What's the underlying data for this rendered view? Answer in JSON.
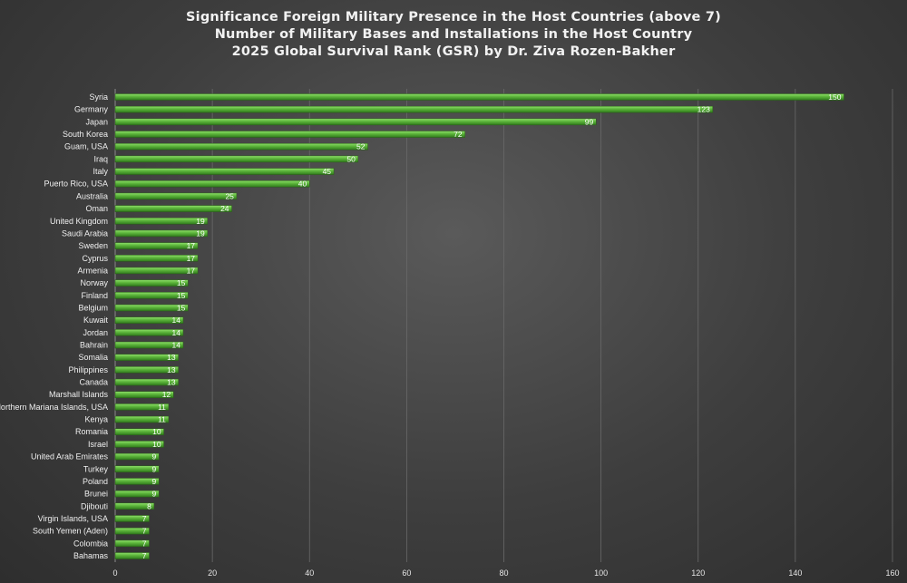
{
  "chart_data": {
    "type": "bar",
    "orientation": "horizontal",
    "title_lines": [
      "Significance Foreign Military Presence in the Host Countries (above 7)",
      "Number of Military Bases and Installations in the Host Country",
      "2025 Global Survival Rank (GSR) by Dr. Ziva Rozen-Bakher"
    ],
    "categories": [
      "Syria",
      "Germany",
      "Japan",
      "South Korea",
      "Guam, USA",
      "Iraq",
      "Italy",
      "Puerto Rico, USA",
      "Australia",
      "Oman",
      "United Kingdom",
      "Saudi Arabia",
      "Sweden",
      "Cyprus",
      "Armenia",
      "Norway",
      "Finland",
      "Belgium",
      "Kuwait",
      "Jordan",
      "Bahrain",
      "Somalia",
      "Philippines",
      "Canada",
      "Marshall Islands",
      "Northern Mariana Islands, USA",
      "Kenya",
      "Romania",
      "Israel",
      "United Arab Emirates",
      "Turkey",
      "Poland",
      "Brunei",
      "Djibouti",
      "Virgin Islands, USA",
      "South Yemen (Aden)",
      "Colombia",
      "Bahamas"
    ],
    "values": [
      150,
      123,
      99,
      72,
      52,
      50,
      45,
      40,
      25,
      24,
      19,
      19,
      17,
      17,
      17,
      15,
      15,
      15,
      14,
      14,
      14,
      13,
      13,
      13,
      12,
      11,
      11,
      10,
      10,
      9,
      9,
      9,
      9,
      8,
      7,
      7,
      7,
      7
    ],
    "xlim": [
      0,
      160
    ],
    "xticks": [
      0,
      20,
      40,
      60,
      80,
      100,
      120,
      140,
      160
    ],
    "grid": true,
    "legend": "none",
    "bar_color": "#5bb33a"
  }
}
